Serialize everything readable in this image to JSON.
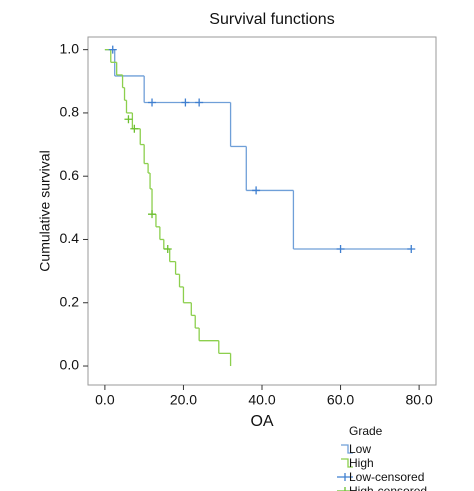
{
  "chart_data": {
    "type": "step",
    "title": "Survival functions",
    "x_label": "OA",
    "y_label": "Cumulative survival",
    "legend_title": "Grade",
    "xlim": [
      -4.3,
      84.3
    ],
    "ylim": [
      -0.06,
      1.04
    ],
    "xticks": [
      {
        "value": 0,
        "label": "0.0"
      },
      {
        "value": 20,
        "label": "20.0"
      },
      {
        "value": 40,
        "label": "40.0"
      },
      {
        "value": 60,
        "label": "60.0"
      },
      {
        "value": 80,
        "label": "80.0"
      }
    ],
    "yticks": [
      {
        "value": 0,
        "label": "0.0"
      },
      0.2,
      0.4,
      0.6,
      0.8,
      {
        "value": 1,
        "label": "1.0"
      }
    ],
    "series": [
      {
        "name": "Low",
        "color": "#6f9fd8",
        "kind": "step",
        "x": [
          0,
          2.5,
          10,
          32,
          36,
          48
        ],
        "values": [
          1.0,
          0.917,
          0.833,
          0.694,
          0.555,
          0.37
        ]
      },
      {
        "name": "High",
        "color": "#8ccf4d",
        "kind": "step",
        "x": [
          0,
          1.5,
          3,
          4.5,
          5,
          5.5,
          7,
          9,
          10,
          11,
          11.5,
          12,
          13,
          14,
          15,
          16.5,
          18,
          19,
          20,
          22,
          23,
          24,
          29,
          32
        ],
        "values": [
          1.0,
          0.96,
          0.92,
          0.88,
          0.84,
          0.8,
          0.75,
          0.7,
          0.64,
          0.61,
          0.56,
          0.48,
          0.44,
          0.4,
          0.37,
          0.33,
          0.29,
          0.25,
          0.2,
          0.16,
          0.12,
          0.08,
          0.04,
          0.0
        ]
      },
      {
        "name": "Low-censored",
        "color": "#3f7fd0",
        "kind": "censor",
        "x": [
          2,
          12,
          20.5,
          24,
          38.5,
          60,
          78
        ],
        "values": [
          1.0,
          0.833,
          0.833,
          0.833,
          0.555,
          0.37,
          0.37
        ]
      },
      {
        "name": "High-censored",
        "color": "#6cbf2f",
        "kind": "censor",
        "x": [
          6,
          7.5,
          12,
          16
        ],
        "values": [
          0.78,
          0.75,
          0.48,
          0.37
        ]
      }
    ]
  }
}
